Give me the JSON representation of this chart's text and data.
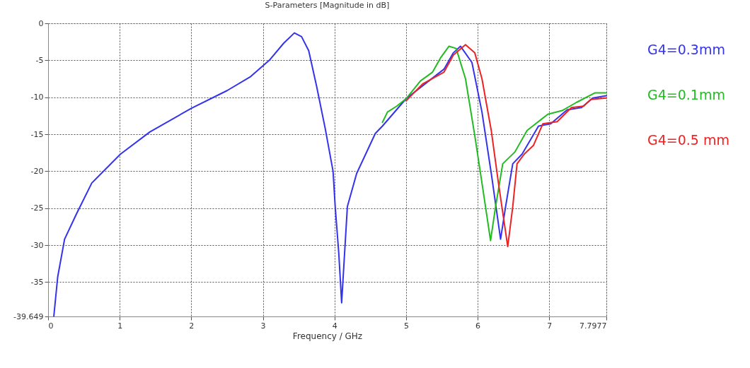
{
  "chart_data": {
    "type": "line",
    "title": "S-Parameters [Magnitude in dB]",
    "xlabel": "Frequency / GHz",
    "xlim": [
      0,
      7.7977
    ],
    "xticks": [
      0,
      1,
      2,
      3,
      4,
      5,
      6,
      7,
      7.7977
    ],
    "ylim": [
      -39.649,
      0
    ],
    "yticks": [
      -39.649,
      -35,
      -30,
      -25,
      -20,
      -15,
      -10,
      -5,
      0
    ],
    "grid": true,
    "legend": "right",
    "line_style": "solid",
    "marker": "none",
    "series": [
      {
        "name": "G4=0.3mm",
        "color": "#3333ee",
        "x": [
          0.08,
          0.134,
          0.23,
          0.4,
          0.61,
          1.01,
          1.42,
          2.0,
          2.5,
          2.83,
          3.09,
          3.29,
          3.44,
          3.54,
          3.64,
          3.75,
          3.87,
          3.98,
          4.01,
          4.06,
          4.1,
          4.18,
          4.31,
          4.57,
          4.67,
          5.0,
          5.33,
          5.53,
          5.66,
          5.76,
          5.92,
          6.06,
          6.19,
          6.32,
          6.39,
          6.49,
          6.62,
          6.85,
          7.02,
          7.25,
          7.45,
          7.61,
          7.7977
        ],
        "values": [
          -39.6,
          -34.3,
          -29.2,
          -25.7,
          -21.6,
          -17.7,
          -14.7,
          -11.5,
          -9.1,
          -7.2,
          -5.0,
          -2.7,
          -1.3,
          -1.8,
          -3.7,
          -8.5,
          -14.2,
          -20.0,
          -24.8,
          -31.1,
          -37.8,
          -24.8,
          -20.3,
          -14.9,
          -13.9,
          -10.2,
          -7.7,
          -6.2,
          -4.0,
          -3.1,
          -5.3,
          -12.0,
          -20.3,
          -29.2,
          -24.8,
          -19.0,
          -17.7,
          -13.9,
          -13.6,
          -11.7,
          -11.4,
          -10.1,
          -9.8
        ]
      },
      {
        "name": "G4=0.1mm",
        "color": "#22bb22",
        "x": [
          4.67,
          4.74,
          4.87,
          5.0,
          5.2,
          5.37,
          5.48,
          5.6,
          5.7,
          5.83,
          5.96,
          6.06,
          6.18,
          6.25,
          6.35,
          6.52,
          6.69,
          6.98,
          7.18,
          7.38,
          7.64,
          7.7977
        ],
        "values": [
          -13.4,
          -12.0,
          -11.2,
          -10.2,
          -7.8,
          -6.6,
          -4.7,
          -3.1,
          -3.4,
          -7.5,
          -15.2,
          -21.6,
          -29.4,
          -24.8,
          -19.0,
          -17.4,
          -14.5,
          -12.3,
          -11.8,
          -10.7,
          -9.4,
          -9.4
        ]
      },
      {
        "name": "G4=0.5 mm",
        "color": "#ee2222",
        "x": [
          5.0,
          5.23,
          5.53,
          5.66,
          5.83,
          5.96,
          6.06,
          6.19,
          6.29,
          6.42,
          6.49,
          6.55,
          6.65,
          6.78,
          6.91,
          7.11,
          7.31,
          7.48,
          7.58,
          7.7977
        ],
        "values": [
          -10.5,
          -8.2,
          -6.6,
          -4.3,
          -2.9,
          -4.0,
          -7.5,
          -14.5,
          -21.6,
          -30.2,
          -24.8,
          -19.0,
          -17.7,
          -16.5,
          -13.6,
          -13.3,
          -11.4,
          -11.2,
          -10.3,
          -10.1
        ]
      }
    ]
  }
}
